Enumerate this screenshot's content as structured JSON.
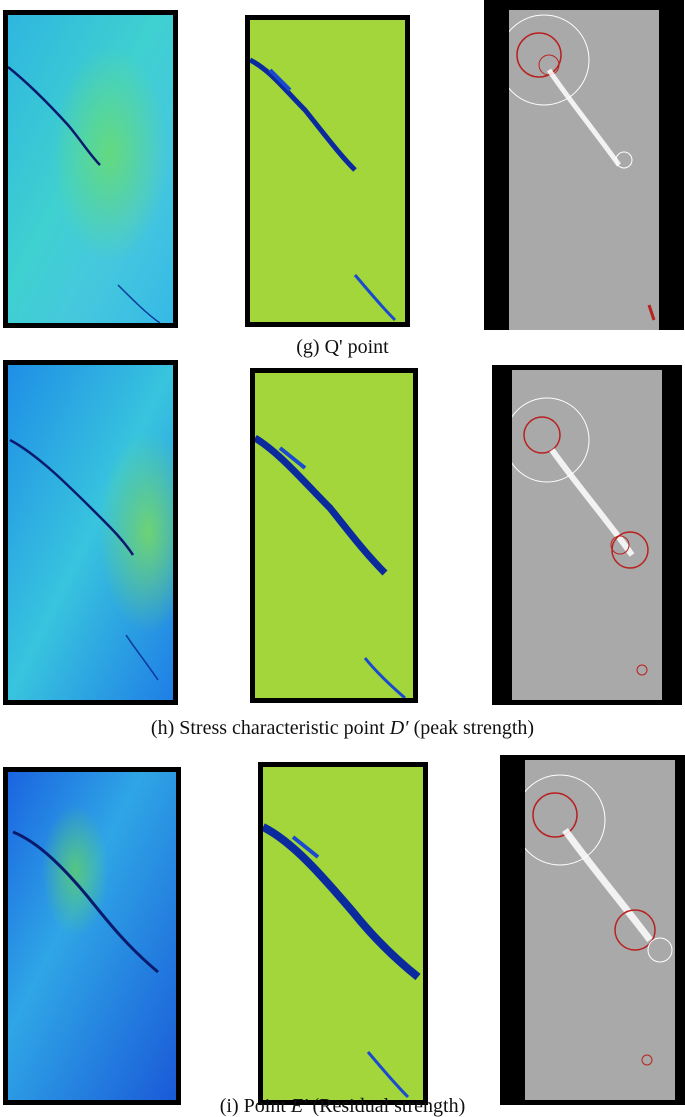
{
  "figure": {
    "rows": [
      {
        "id": "g",
        "caption_prefix": "(g) Q' point",
        "caption_symbol": "",
        "caption_suffix": "",
        "panels": [
          "displacement-field",
          "strain-field",
          "acoustic-emission-events"
        ]
      },
      {
        "id": "h",
        "caption_prefix": "(h) Stress characteristic point ",
        "caption_symbol": "D′",
        "caption_suffix": " (peak strength)",
        "panels": [
          "displacement-field",
          "strain-field",
          "acoustic-emission-events"
        ]
      },
      {
        "id": "i",
        "caption_prefix": "(i) Point ",
        "caption_symbol": "E′",
        "caption_suffix": " (Residual strength)",
        "panels": [
          "displacement-field",
          "strain-field",
          "acoustic-emission-events"
        ]
      }
    ],
    "colors": {
      "background": "#ffffff",
      "frame": "#000000",
      "field_blue": "#1a6fe0",
      "field_cyan": "#2fc9d8",
      "field_green": "#8fd43a",
      "field_yellow": "#d6e23a",
      "crack_dark": "#0a1a6e",
      "ae_gray": "#a9a9a9",
      "ae_red": "#b8211f",
      "ae_white": "#ffffff"
    }
  }
}
